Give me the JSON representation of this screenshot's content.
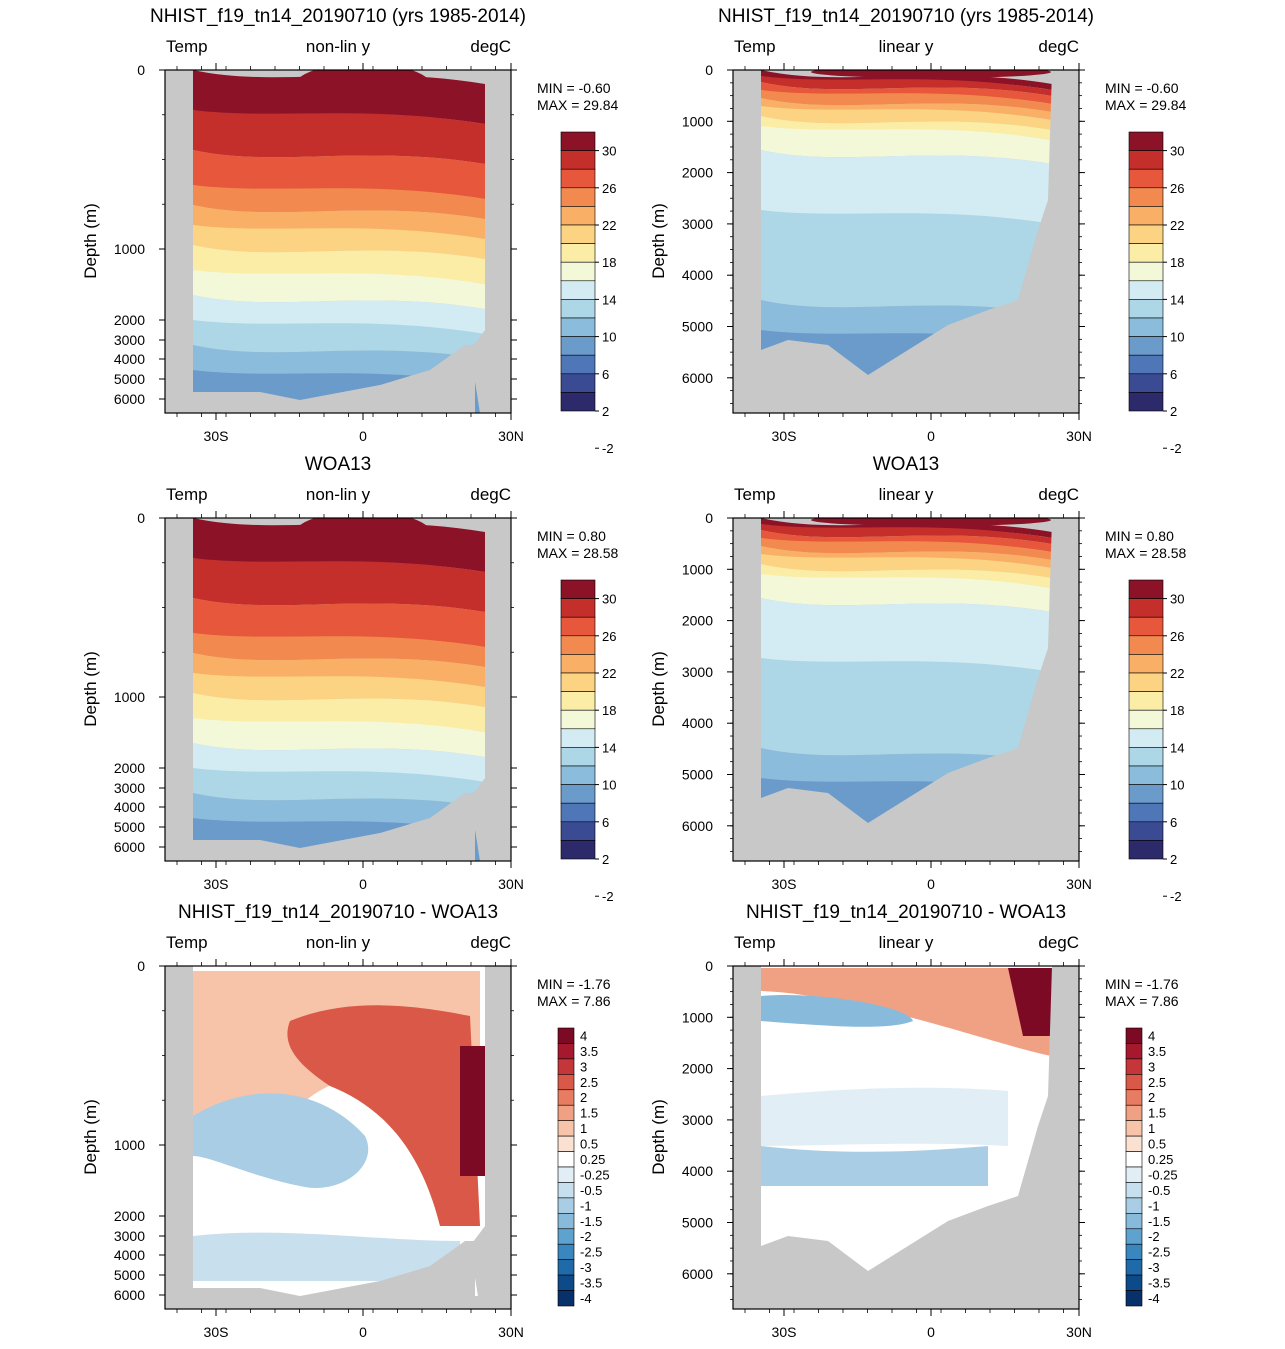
{
  "colors": {
    "land": "#c8c8c8",
    "temp_levels": [
      "#2d2a6b",
      "#3a4a93",
      "#4f77b8",
      "#6b9bcb",
      "#8bbcdb",
      "#add7e7",
      "#d3ebf2",
      "#f2f8d8",
      "#fbeda6",
      "#fbd382",
      "#f9b066",
      "#f28a4f",
      "#e6573c",
      "#c42e2b",
      "#8c1327"
    ],
    "diff_levels": [
      "#08306b",
      "#0d4a8a",
      "#1f6aa8",
      "#3a86bf",
      "#5ea2cf",
      "#88bbdb",
      "#a9cde4",
      "#c8dfee",
      "#e2eef6",
      "#ffffff",
      "#fbe1d2",
      "#f7c4aa",
      "#f1a183",
      "#e87c62",
      "#d95847",
      "#c5363a",
      "#a6182e",
      "#7d0a25"
    ]
  },
  "chart_data": [
    {
      "type": "heatmap",
      "id": "p1",
      "title": "NHIST_f19_tn14_20190710 (yrs 1985-2014)",
      "left_label": "Temp",
      "center_label": "non-lin y",
      "right_label": "degC",
      "ylabel": "Depth (m)",
      "y_scale": "non-linear",
      "y_ticks": [
        "0",
        "1000",
        "2000",
        "3000",
        "4000",
        "5000",
        "6000"
      ],
      "x_ticks": [
        "30S",
        "0",
        "30N"
      ],
      "min_label": "MIN =  -0.60",
      "max_label": "MAX =  29.84",
      "colorbar": "temp",
      "colorbar_labels": [
        "30",
        "26",
        "22",
        "18",
        "14",
        "10",
        "6",
        "2",
        "-2"
      ]
    },
    {
      "type": "heatmap",
      "id": "p2",
      "title": "NHIST_f19_tn14_20190710 (yrs 1985-2014)",
      "left_label": "Temp",
      "center_label": "linear y",
      "right_label": "degC",
      "ylabel": "Depth (m)",
      "y_scale": "linear",
      "y_ticks": [
        "0",
        "1000",
        "2000",
        "3000",
        "4000",
        "5000",
        "6000"
      ],
      "x_ticks": [
        "30S",
        "0",
        "30N"
      ],
      "min_label": "MIN =  -0.60",
      "max_label": "MAX =  29.84",
      "colorbar": "temp",
      "colorbar_labels": [
        "30",
        "26",
        "22",
        "18",
        "14",
        "10",
        "6",
        "2",
        "-2"
      ]
    },
    {
      "type": "heatmap",
      "id": "p3",
      "title": "WOA13",
      "left_label": "Temp",
      "center_label": "non-lin y",
      "right_label": "degC",
      "ylabel": "Depth (m)",
      "y_scale": "non-linear",
      "y_ticks": [
        "0",
        "1000",
        "2000",
        "3000",
        "4000",
        "5000",
        "6000"
      ],
      "x_ticks": [
        "30S",
        "0",
        "30N"
      ],
      "min_label": "MIN =  0.80",
      "max_label": "MAX =  28.58",
      "colorbar": "temp",
      "colorbar_labels": [
        "30",
        "26",
        "22",
        "18",
        "14",
        "10",
        "6",
        "2",
        "-2"
      ]
    },
    {
      "type": "heatmap",
      "id": "p4",
      "title": "WOA13",
      "left_label": "Temp",
      "center_label": "linear y",
      "right_label": "degC",
      "ylabel": "Depth (m)",
      "y_scale": "linear",
      "y_ticks": [
        "0",
        "1000",
        "2000",
        "3000",
        "4000",
        "5000",
        "6000"
      ],
      "x_ticks": [
        "30S",
        "0",
        "30N"
      ],
      "min_label": "MIN =  0.80",
      "max_label": "MAX =  28.58",
      "colorbar": "temp",
      "colorbar_labels": [
        "30",
        "26",
        "22",
        "18",
        "14",
        "10",
        "6",
        "2",
        "-2"
      ]
    },
    {
      "type": "heatmap",
      "id": "p5",
      "title": "NHIST_f19_tn14_20190710 - WOA13",
      "left_label": "Temp",
      "center_label": "non-lin y",
      "right_label": "degC",
      "ylabel": "Depth (m)",
      "y_scale": "non-linear",
      "y_ticks": [
        "0",
        "1000",
        "2000",
        "3000",
        "4000",
        "5000",
        "6000"
      ],
      "x_ticks": [
        "30S",
        "0",
        "30N"
      ],
      "min_label": "MIN =  -1.76",
      "max_label": "MAX =  7.86",
      "colorbar": "diff",
      "colorbar_labels": [
        "4",
        "3.5",
        "3",
        "2.5",
        "2",
        "1.5",
        "1",
        "0.5",
        "0.25",
        "-0.25",
        "-0.5",
        "-1",
        "-1.5",
        "-2",
        "-2.5",
        "-3",
        "-3.5",
        "-4"
      ]
    },
    {
      "type": "heatmap",
      "id": "p6",
      "title": "NHIST_f19_tn14_20190710 - WOA13",
      "left_label": "Temp",
      "center_label": "linear y",
      "right_label": "degC",
      "ylabel": "Depth (m)",
      "y_scale": "linear",
      "y_ticks": [
        "0",
        "1000",
        "2000",
        "3000",
        "4000",
        "5000",
        "6000"
      ],
      "x_ticks": [
        "30S",
        "0",
        "30N"
      ],
      "min_label": "MIN =  -1.76",
      "max_label": "MAX =  7.86",
      "colorbar": "diff",
      "colorbar_labels": [
        "4",
        "3.5",
        "3",
        "2.5",
        "2",
        "1.5",
        "1",
        "0.5",
        "0.25",
        "-0.25",
        "-0.5",
        "-1",
        "-1.5",
        "-2",
        "-2.5",
        "-3",
        "-3.5",
        "-4"
      ]
    }
  ]
}
